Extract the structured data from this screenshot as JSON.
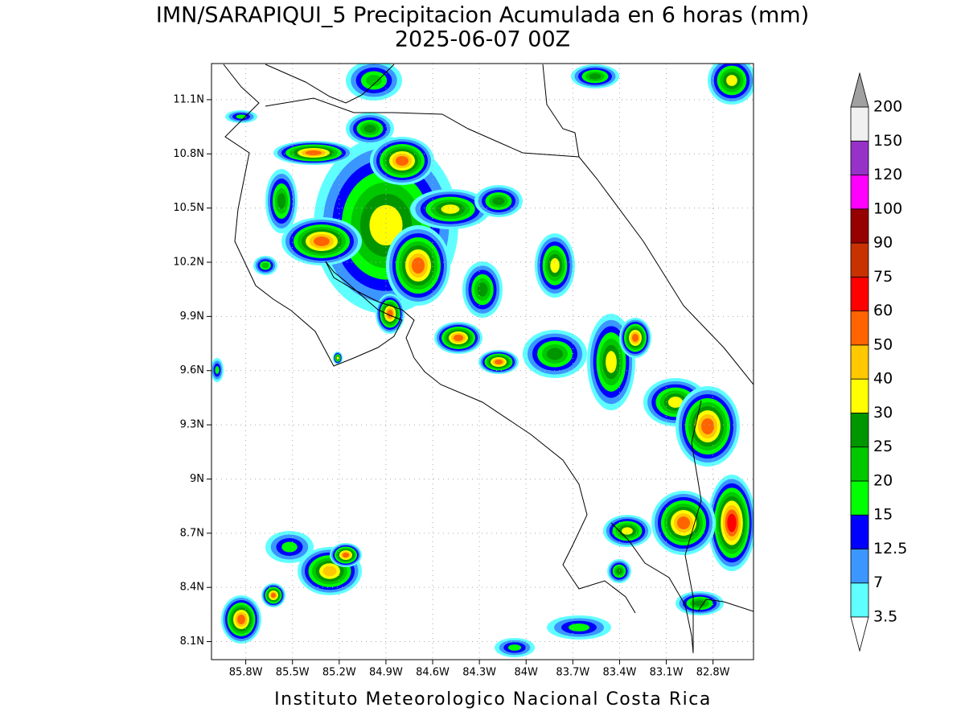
{
  "title": "IMN/SARAPIQUI_5 Precipitacion Acumulada en 6 horas (mm)",
  "subtitle": "2025-06-07 00Z",
  "footer": "Instituto Meteorologico Nacional Costa Rica",
  "map": {
    "lonlim": [
      -86.02,
      -82.54
    ],
    "latlim": [
      8.0,
      11.3
    ],
    "grid": true,
    "lon_ticks": [
      {
        "value": -85.8,
        "label": "85.8W"
      },
      {
        "value": -85.5,
        "label": "85.5W"
      },
      {
        "value": -85.2,
        "label": "85.2W"
      },
      {
        "value": -84.9,
        "label": "84.9W"
      },
      {
        "value": -84.6,
        "label": "84.6W"
      },
      {
        "value": -84.3,
        "label": "84.3W"
      },
      {
        "value": -84,
        "label": "84W"
      },
      {
        "value": -83.7,
        "label": "83.7W"
      },
      {
        "value": -83.4,
        "label": "83.4W"
      },
      {
        "value": -83.1,
        "label": "83.1W"
      },
      {
        "value": -82.8,
        "label": "82.8W"
      }
    ],
    "lat_ticks": [
      {
        "value": 11.1,
        "label": "11.1N"
      },
      {
        "value": 10.8,
        "label": "10.8N"
      },
      {
        "value": 10.5,
        "label": "10.5N"
      },
      {
        "value": 10.2,
        "label": "10.2N"
      },
      {
        "value": 9.9,
        "label": "9.9N"
      },
      {
        "value": 9.6,
        "label": "9.6N"
      },
      {
        "value": 9.3,
        "label": "9.3N"
      },
      {
        "value": 9,
        "label": "9N"
      },
      {
        "value": 8.7,
        "label": "8.7N"
      },
      {
        "value": 8.4,
        "label": "8.4N"
      },
      {
        "value": 8.1,
        "label": "8.1N"
      }
    ]
  },
  "colorbar": {
    "levels": [
      3.5,
      7,
      12.5,
      15,
      20,
      25,
      30,
      40,
      50,
      60,
      75,
      90,
      100,
      120,
      150,
      200
    ],
    "colors": [
      "#60ffff",
      "#3c96ff",
      "#0000ff",
      "#00ff00",
      "#00c800",
      "#009600",
      "#ffff00",
      "#ffc800",
      "#ff6400",
      "#ff0000",
      "#c83200",
      "#960000",
      "#ff00ff",
      "#9632c8",
      "#f0f0f0"
    ],
    "under_color": "#ffffff",
    "over_color": "#a0a0a0"
  }
}
